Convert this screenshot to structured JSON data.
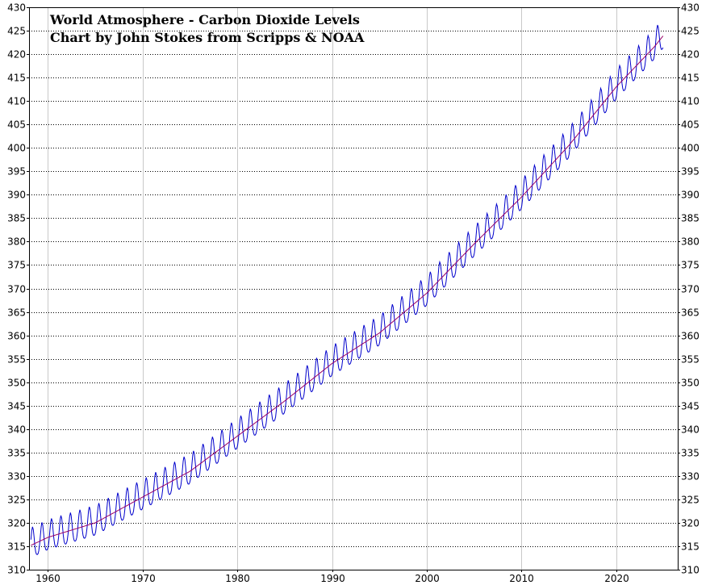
{
  "chart_data": {
    "type": "line",
    "title_lines": [
      "World Atmosphere - Carbon Dioxide Levels",
      "Chart by John Stokes from Scripps & NOAA"
    ],
    "xlabel": "",
    "ylabel": "",
    "xlim": [
      1958,
      2026.5
    ],
    "ylim": [
      310,
      430
    ],
    "x_ticks": [
      1960,
      1970,
      1980,
      1990,
      2000,
      2010,
      2020
    ],
    "y_ticks": [
      310,
      315,
      320,
      325,
      330,
      335,
      340,
      345,
      350,
      355,
      360,
      365,
      370,
      375,
      380,
      385,
      390,
      395,
      400,
      405,
      410,
      415,
      420,
      425,
      430
    ],
    "grid": {
      "x": "solid-light",
      "y": "dotted"
    },
    "y_axis_labels_both_sides": true,
    "series": [
      {
        "kind": "monthly",
        "color": "#0000cc",
        "trend_points": [
          {
            "x": 1958.0,
            "y": 315.0
          },
          {
            "x": 1960.0,
            "y": 316.9
          },
          {
            "x": 1965.0,
            "y": 320.0
          },
          {
            "x": 1970.0,
            "y": 325.5
          },
          {
            "x": 1975.0,
            "y": 331.0
          },
          {
            "x": 1980.0,
            "y": 338.5
          },
          {
            "x": 1985.0,
            "y": 346.0
          },
          {
            "x": 1990.0,
            "y": 354.0
          },
          {
            "x": 1995.0,
            "y": 360.5
          },
          {
            "x": 2000.0,
            "y": 369.0
          },
          {
            "x": 2005.0,
            "y": 379.5
          },
          {
            "x": 2010.0,
            "y": 389.5
          },
          {
            "x": 2015.0,
            "y": 400.5
          },
          {
            "x": 2020.0,
            "y": 413.0
          },
          {
            "x": 2024.0,
            "y": 421.5
          },
          {
            "x": 2025.0,
            "y": 424.0
          }
        ],
        "seasonal_amplitude": 3.2,
        "seasonal_peak_fraction": 0.37
      },
      {
        "kind": "trend",
        "color": "#990066"
      }
    ]
  }
}
